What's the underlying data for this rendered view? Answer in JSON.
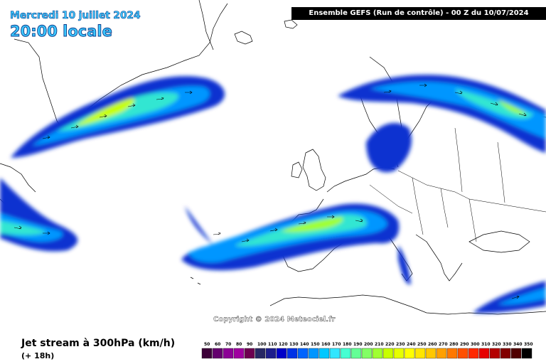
{
  "title": {
    "date": "Mercredi 10 juillet 2024",
    "time": "20:00 locale"
  },
  "header": {
    "model_run": "Ensemble GEFS  (Run de contrôle)  -  00 Z du 10/07/2024"
  },
  "copyright": "Copyright © 2024 Meteociel.fr",
  "parameter": {
    "title": "Jet stream à 300hPa (km/h)",
    "lead_time": "(+ 18h)"
  },
  "legend": {
    "labels": [
      "50",
      "60",
      "70",
      "80",
      "90",
      "100",
      "110",
      "120",
      "130",
      "140",
      "150",
      "160",
      "170",
      "180",
      "190",
      "200",
      "210",
      "220",
      "230",
      "240",
      "250",
      "260",
      "270",
      "280",
      "290",
      "300",
      "310",
      "320",
      "330",
      "340",
      "350"
    ],
    "colors": [
      "#3c0038",
      "#64006e",
      "#8c0096",
      "#a000a0",
      "#6e0050",
      "#282864",
      "#1e1e8c",
      "#0000c8",
      "#0032e6",
      "#0064ff",
      "#0096ff",
      "#00c8ff",
      "#32e6ff",
      "#46ffd2",
      "#64ff96",
      "#82ff64",
      "#a0ff32",
      "#c8ff00",
      "#e6ff00",
      "#ffff00",
      "#ffe600",
      "#ffc800",
      "#ffa000",
      "#ff7800",
      "#ff5000",
      "#ff2800",
      "#e60000",
      "#b40000",
      "#820000",
      "#500000",
      "#000000"
    ]
  },
  "map": {
    "region": "North Atlantic and Europe",
    "jet_speed_max_kmh": 220
  }
}
